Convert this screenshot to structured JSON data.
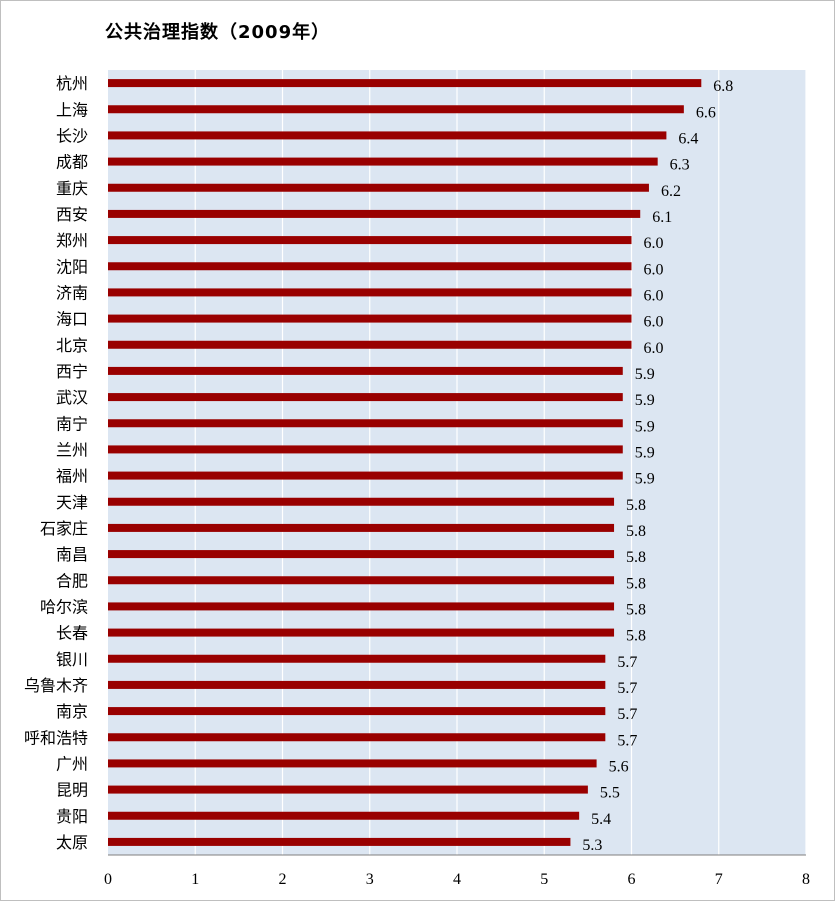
{
  "chart_data": {
    "type": "bar",
    "orientation": "horizontal",
    "title": "公共治理指数（2009年）",
    "categories": [
      "杭州",
      "上海",
      "长沙",
      "成都",
      "重庆",
      "西安",
      "郑州",
      "沈阳",
      "济南",
      "海口",
      "北京",
      "西宁",
      "武汉",
      "南宁",
      "兰州",
      "福州",
      "天津",
      "石家庄",
      "南昌",
      "合肥",
      "哈尔滨",
      "长春",
      "银川",
      "乌鲁木齐",
      "南京",
      "呼和浩特",
      "广州",
      "昆明",
      "贵阳",
      "太原"
    ],
    "values": [
      6.8,
      6.6,
      6.4,
      6.3,
      6.2,
      6.1,
      6.0,
      6.0,
      6.0,
      6.0,
      6.0,
      5.9,
      5.9,
      5.9,
      5.9,
      5.9,
      5.8,
      5.8,
      5.8,
      5.8,
      5.8,
      5.8,
      5.7,
      5.7,
      5.7,
      5.7,
      5.6,
      5.5,
      5.4,
      5.3
    ],
    "value_labels": [
      "6.8",
      "6.6",
      "6.4",
      "6.3",
      "6.2",
      "6.1",
      "6.0",
      "6.0",
      "6.0",
      "6.0",
      "6.0",
      "5.9",
      "5.9",
      "5.9",
      "5.9",
      "5.9",
      "5.8",
      "5.8",
      "5.8",
      "5.8",
      "5.8",
      "5.8",
      "5.7",
      "5.7",
      "5.7",
      "5.7",
      "5.6",
      "5.5",
      "5.4",
      "5.3"
    ],
    "xlim": [
      0,
      8
    ],
    "x_ticks": [
      "0",
      "1",
      "2",
      "3",
      "4",
      "5",
      "6",
      "7",
      "8"
    ],
    "grid": "vertical",
    "legend": "none",
    "colors": {
      "bar": "#990000",
      "plot_background": "#dce6f2",
      "grid": "#ffffff",
      "axis": "#7f7f7f"
    }
  }
}
